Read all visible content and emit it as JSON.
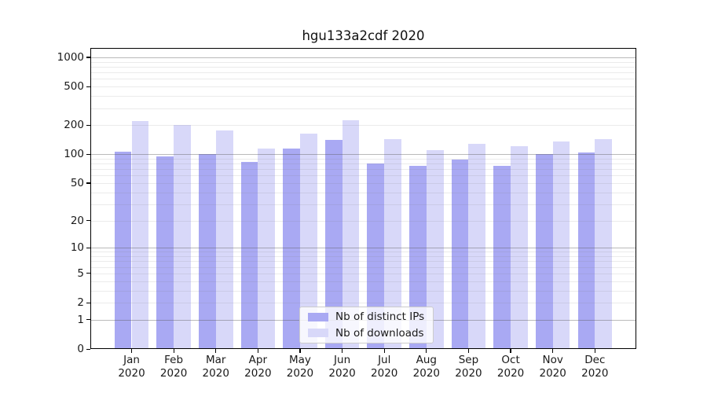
{
  "chart_data": {
    "type": "bar",
    "title": "hgu133a2cdf 2020",
    "categories": [
      "Jan",
      "Feb",
      "Mar",
      "Apr",
      "May",
      "Jun",
      "Jul",
      "Aug",
      "Sep",
      "Oct",
      "Nov",
      "Dec"
    ],
    "x_year_label": "2020",
    "series": [
      {
        "name": "Nb of distinct IPs",
        "color": "#a9a9f3",
        "values": [
          107,
          94,
          100,
          83,
          114,
          140,
          80,
          75,
          88,
          75,
          100,
          104
        ]
      },
      {
        "name": "Nb of downloads",
        "color": "#d8d8f9",
        "values": [
          220,
          200,
          175,
          114,
          163,
          223,
          144,
          111,
          129,
          121,
          136,
          142
        ]
      }
    ],
    "y_axis": {
      "scale": "log10(1+x)",
      "ticks": [
        0,
        1,
        2,
        5,
        10,
        20,
        50,
        100,
        200,
        500,
        1000
      ],
      "ylim": [
        0,
        1250
      ]
    },
    "xlabel": "",
    "ylabel": "",
    "grid": {
      "enabled": true,
      "major_values": [
        1,
        10,
        100,
        1000
      ],
      "major_color": "#5a5a5a",
      "minor_color": "#808080"
    },
    "legend": {
      "position": "lower center",
      "labels": [
        "Nb of distinct IPs",
        "Nb of downloads"
      ]
    },
    "colors": {
      "spine": "#000000",
      "text": "#1a1a1a",
      "legend_border": "#cccccc",
      "background": "#ffffff"
    }
  }
}
